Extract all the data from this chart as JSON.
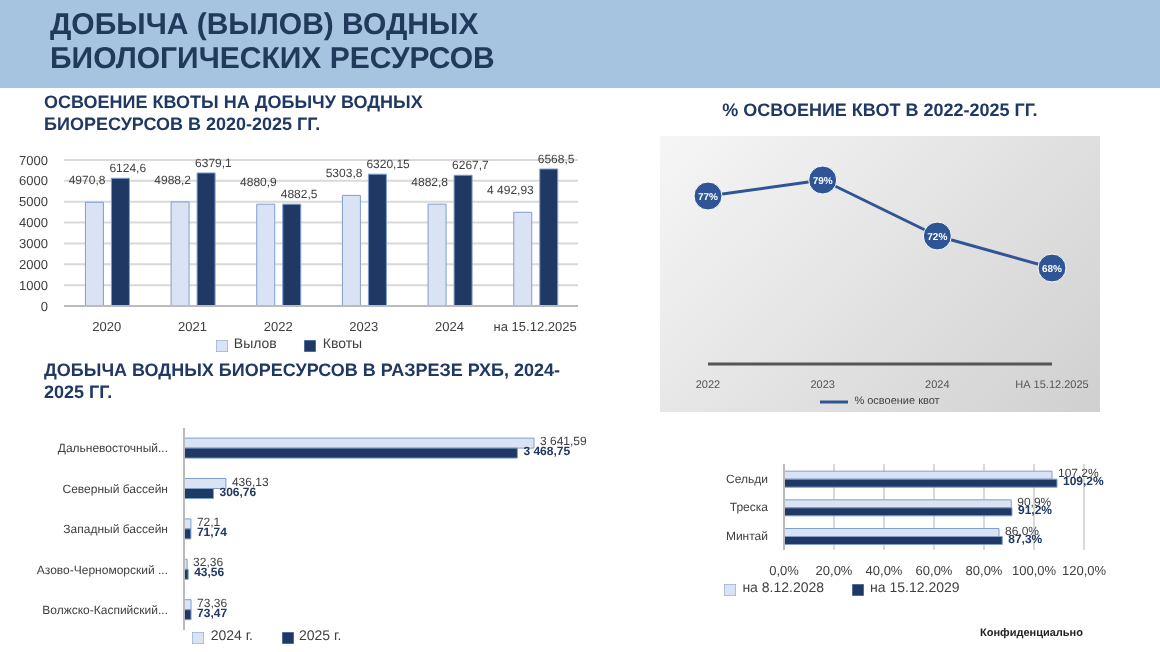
{
  "chart_data": [
    {
      "type": "bar",
      "title": "ОСВОЕНИЕ КВОТЫ НА ДОБЫЧУ ВОДНЫХ БИОРЕСУРСОВ В 2020-2025 ГГ.",
      "annotations": [
        "ДОБЫЧА (ВЫЛОВ) ВОДНЫХ БИОЛОГИЧЕСКИХ РЕСУРСОВ"
      ],
      "categories": [
        "2020",
        "2021",
        "2022",
        "2023",
        "2024",
        "на 15.12.2025"
      ],
      "series": [
        {
          "name": "Вылов",
          "color": "#dae3f3",
          "values": [
            4970.8,
            4988.2,
            4880.9,
            5303.8,
            4882.8,
            4492.93
          ],
          "value_labels": [
            "4970,8",
            "4988,2",
            "4880,9",
            "5303,8",
            "4882,8",
            "4 492,93"
          ]
        },
        {
          "name": "Квоты",
          "color": "#203864",
          "values": [
            6124.6,
            6379.1,
            4882.5,
            6320.15,
            6267.7,
            6568.5
          ],
          "value_labels": [
            "6124,6",
            "6379,1",
            "4882,5",
            "6320,15",
            "6267,7",
            "6568,5"
          ]
        }
      ],
      "ylim": [
        0,
        7000
      ],
      "yticks": [
        0,
        1000,
        2000,
        3000,
        4000,
        5000,
        6000,
        7000
      ],
      "grid": "y",
      "legend": "bottom"
    },
    {
      "type": "line",
      "title": "% ОСВОЕНИЕ КВОТ В 2022-2025 ГГ.",
      "categories": [
        "2022",
        "2023",
        "2024",
        "НА 15.12.2025"
      ],
      "series": [
        {
          "name": "% освоение квот",
          "color": "#2f5597",
          "values": [
            77,
            79,
            72,
            68
          ],
          "value_labels": [
            "77%",
            "79%",
            "72%",
            "68%"
          ]
        }
      ],
      "marker": "circle",
      "legend": "bottom",
      "tick_labels": "x"
    },
    {
      "type": "bar",
      "orientation": "horizontal",
      "title": "ДОБЫЧА ВОДНЫХ БИОРЕСУРСОВ В РАЗРЕЗЕ РХБ, 2024-2025 ГГ.",
      "categories": [
        "Дальневосточный...",
        "Северный бассейн",
        "Западный бассейн",
        "Азово-Черноморский ...",
        "Волжско-Каспийский..."
      ],
      "series": [
        {
          "name": "2024 г.",
          "color": "#dae3f3",
          "values": [
            3641.59,
            436.13,
            72.1,
            32.36,
            73.36
          ],
          "value_labels": [
            "3 641,59",
            "436,13",
            "72,1",
            "32,36",
            "73,36"
          ]
        },
        {
          "name": "2025 г.",
          "color": "#203864",
          "values": [
            3468.75,
            306.76,
            71.74,
            43.56,
            73.47
          ],
          "value_labels": [
            "3 468,75",
            "306,76",
            "71,74",
            "43,56",
            "73,47"
          ]
        }
      ],
      "legend": "bottom",
      "tick_labels": "y"
    },
    {
      "type": "bar",
      "orientation": "horizontal",
      "annotations": [
        "Конфиденциально"
      ],
      "categories": [
        "Сельди",
        "Треска",
        "Минтай"
      ],
      "series": [
        {
          "name": "на 8.12.2028",
          "color": "#dae3f3",
          "values": [
            107.2,
            90.9,
            86.0
          ],
          "value_labels": [
            "107,2%",
            "90,9%",
            "86,0%"
          ]
        },
        {
          "name": "на 15.12.2029",
          "color": "#203864",
          "values": [
            109.2,
            91.2,
            87.3
          ],
          "value_labels": [
            "109,2%",
            "91,2%",
            "87,3%"
          ]
        }
      ],
      "xlim": [
        0,
        120
      ],
      "xticks": [
        {
          "value": 0,
          "label": "0,0%"
        },
        {
          "value": 20,
          "label": "20,0%"
        },
        {
          "value": 40,
          "label": "40,0%"
        },
        {
          "value": 60,
          "label": "60,0%"
        },
        {
          "value": 80,
          "label": "80,0%"
        },
        {
          "value": 100,
          "label": "100,0%"
        },
        {
          "value": 120,
          "label": "120,0%"
        }
      ],
      "grid": "x",
      "legend": "bottom"
    }
  ]
}
